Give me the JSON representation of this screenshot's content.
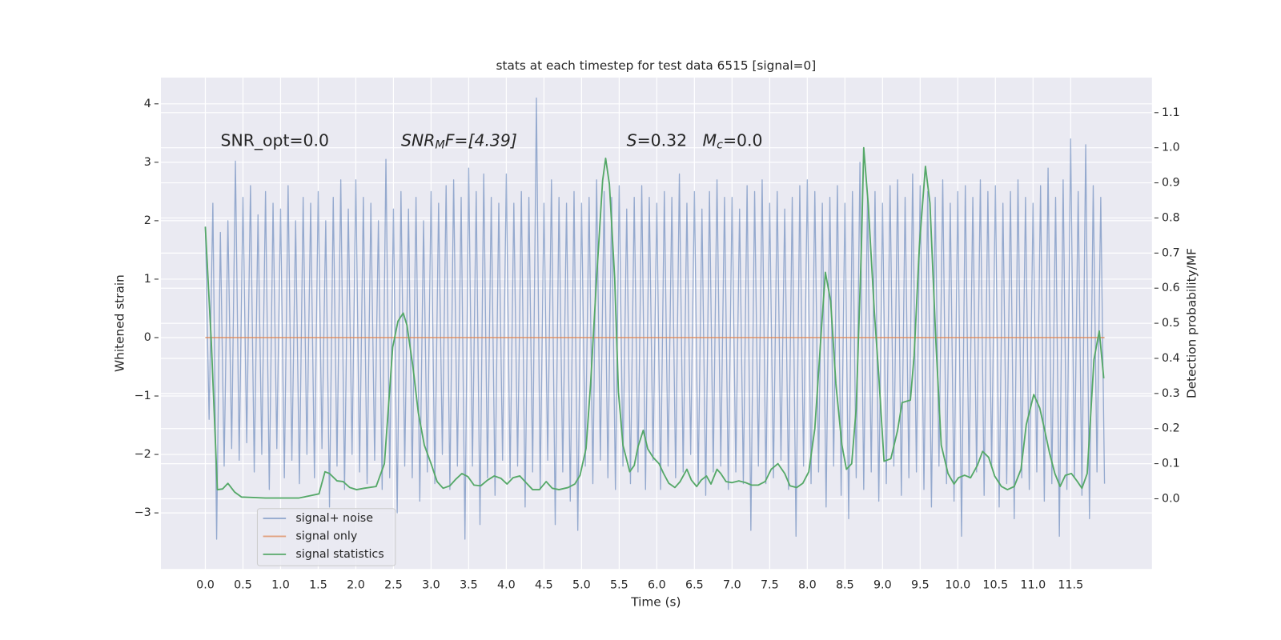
{
  "chart_data": {
    "type": "line",
    "title": "stats at each timestep for test data 6515 [signal=0]",
    "xlabel": "Time (s)",
    "ylabel": "Whitened strain",
    "y2label": "Detection probability/MF",
    "annotations": [
      [
        "SNR_opt=0.0"
      ],
      [
        "SNR",
        "M",
        "F=[4.39]"
      ],
      [
        "S",
        "=0.32   ",
        "M",
        "c",
        "=0.0"
      ]
    ],
    "grid": true,
    "legend": "lower left",
    "xlim": [
      -0.59,
      12.58
    ],
    "ylim": [
      -3.96,
      4.45
    ],
    "y2lim": [
      -0.2,
      1.2
    ],
    "xticks": [
      {
        "value": 0,
        "label": "0.0"
      },
      {
        "value": 0.5,
        "label": "0.5"
      },
      {
        "value": 1,
        "label": "1.0"
      },
      {
        "value": 1.5,
        "label": "1.5"
      },
      {
        "value": 2,
        "label": "2.0"
      },
      {
        "value": 2.5,
        "label": "2.5"
      },
      {
        "value": 3,
        "label": "3.0"
      },
      {
        "value": 3.5,
        "label": "3.5"
      },
      {
        "value": 4,
        "label": "4.0"
      },
      {
        "value": 4.5,
        "label": "4.5"
      },
      {
        "value": 5,
        "label": "5.0"
      },
      {
        "value": 5.5,
        "label": "5.5"
      },
      {
        "value": 6,
        "label": "6.0"
      },
      {
        "value": 6.5,
        "label": "6.5"
      },
      {
        "value": 7,
        "label": "7.0"
      },
      {
        "value": 7.5,
        "label": "7.5"
      },
      {
        "value": 8,
        "label": "8.0"
      },
      {
        "value": 8.5,
        "label": "8.5"
      },
      {
        "value": 9,
        "label": "9.0"
      },
      {
        "value": 9.5,
        "label": "9.5"
      },
      {
        "value": 10,
        "label": "10.0"
      },
      {
        "value": 10.5,
        "label": "10.5"
      },
      {
        "value": 11,
        "label": "11.0"
      },
      {
        "value": 11.5,
        "label": "11.5"
      }
    ],
    "yticks": [
      {
        "value": -3,
        "label": "−3"
      },
      {
        "value": -2,
        "label": "−2"
      },
      {
        "value": -1,
        "label": "−1"
      },
      0,
      1,
      2,
      3,
      4
    ],
    "y2ticks": [
      {
        "value": 0,
        "label": "0.0"
      },
      {
        "value": 0.1,
        "label": "0.1"
      },
      {
        "value": 0.2,
        "label": "0.2"
      },
      {
        "value": 0.3,
        "label": "0.3"
      },
      {
        "value": 0.4,
        "label": "0.4"
      },
      {
        "value": 0.5,
        "label": "0.5"
      },
      {
        "value": 0.6,
        "label": "0.6"
      },
      {
        "value": 0.7,
        "label": "0.7"
      },
      {
        "value": 0.8,
        "label": "0.8"
      },
      {
        "value": 0.9,
        "label": "0.9"
      },
      {
        "value": 1.0,
        "label": "1.0"
      },
      {
        "value": 1.1,
        "label": "1.1"
      }
    ],
    "series": [
      {
        "name": "signal+ noise",
        "color": "#4c72b0",
        "x": [
          0,
          0.05,
          0.1,
          0.15,
          0.2,
          0.25,
          0.3,
          0.35,
          0.4,
          0.45,
          0.5,
          0.55,
          0.6,
          0.65,
          0.7,
          0.75,
          0.8,
          0.85,
          0.9,
          0.95,
          1,
          1.05,
          1.1,
          1.15,
          1.2,
          1.25,
          1.3,
          1.35,
          1.4,
          1.45,
          1.5,
          1.55,
          1.6,
          1.65,
          1.7,
          1.75,
          1.8,
          1.85,
          1.9,
          1.95,
          2,
          2.05,
          2.1,
          2.15,
          2.2,
          2.25,
          2.3,
          2.35,
          2.4,
          2.45,
          2.5,
          2.55,
          2.6,
          2.65,
          2.7,
          2.75,
          2.8,
          2.85,
          2.9,
          2.95,
          3,
          3.05,
          3.1,
          3.15,
          3.2,
          3.25,
          3.3,
          3.35,
          3.4,
          3.45,
          3.5,
          3.55,
          3.6,
          3.65,
          3.7,
          3.75,
          3.8,
          3.85,
          3.9,
          3.95,
          4,
          4.05,
          4.1,
          4.15,
          4.2,
          4.25,
          4.3,
          4.35,
          4.4,
          4.45,
          4.5,
          4.55,
          4.6,
          4.65,
          4.7,
          4.75,
          4.8,
          4.85,
          4.9,
          4.95,
          5,
          5.05,
          5.1,
          5.15,
          5.2,
          5.25,
          5.3,
          5.35,
          5.4,
          5.45,
          5.5,
          5.55,
          5.6,
          5.65,
          5.7,
          5.75,
          5.8,
          5.85,
          5.9,
          5.95,
          6,
          6.05,
          6.1,
          6.15,
          6.2,
          6.25,
          6.3,
          6.35,
          6.4,
          6.45,
          6.5,
          6.55,
          6.6,
          6.65,
          6.7,
          6.75,
          6.8,
          6.85,
          6.9,
          6.95,
          7,
          7.05,
          7.1,
          7.15,
          7.2,
          7.25,
          7.3,
          7.35,
          7.4,
          7.45,
          7.5,
          7.55,
          7.6,
          7.65,
          7.7,
          7.75,
          7.8,
          7.85,
          7.9,
          7.95,
          8,
          8.05,
          8.1,
          8.15,
          8.2,
          8.25,
          8.3,
          8.35,
          8.4,
          8.45,
          8.5,
          8.55,
          8.6,
          8.65,
          8.7,
          8.75,
          8.8,
          8.85,
          8.9,
          8.95,
          9,
          9.05,
          9.1,
          9.15,
          9.2,
          9.25,
          9.3,
          9.35,
          9.4,
          9.45,
          9.5,
          9.55,
          9.6,
          9.65,
          9.7,
          9.75,
          9.8,
          9.85,
          9.9,
          9.95,
          10,
          10.05,
          10.1,
          10.15,
          10.2,
          10.25,
          10.3,
          10.35,
          10.4,
          10.45,
          10.5,
          10.55,
          10.6,
          10.65,
          10.7,
          10.75,
          10.8,
          10.85,
          10.9,
          10.95,
          11,
          11.05,
          11.1,
          11.15,
          11.2,
          11.25,
          11.3,
          11.35,
          11.4,
          11.45,
          11.5,
          11.55,
          11.6,
          11.65,
          11.7,
          11.75,
          11.8,
          11.85,
          11.9,
          11.95
        ],
        "values": [
          1.9,
          -1.4,
          2.3,
          -3.45,
          1.8,
          -2.2,
          2.0,
          -1.9,
          3.02,
          -2.1,
          2.4,
          -1.8,
          2.6,
          -2.3,
          2.1,
          -2.0,
          2.5,
          -2.6,
          2.3,
          -1.9,
          2.2,
          -2.4,
          2.6,
          -2.1,
          2.0,
          -2.5,
          2.4,
          -2.0,
          2.3,
          -2.4,
          2.5,
          -1.9,
          2.0,
          -2.9,
          2.4,
          -2.2,
          2.7,
          -2.6,
          2.2,
          -2.0,
          2.7,
          -2.3,
          2.4,
          -2.5,
          2.3,
          -2.1,
          2.0,
          -2.6,
          3.05,
          -2.4,
          2.2,
          -3.0,
          2.5,
          -2.2,
          2.2,
          -2.4,
          2.4,
          -2.8,
          2.0,
          -2.3,
          2.5,
          -2.5,
          2.3,
          -2.0,
          2.6,
          -2.6,
          2.7,
          -2.2,
          2.4,
          -3.45,
          2.9,
          -2.2,
          2.5,
          -3.2,
          2.8,
          -2.4,
          2.4,
          -2.7,
          2.3,
          -2.1,
          2.8,
          -2.4,
          2.3,
          -2.2,
          2.5,
          -2.9,
          2.4,
          -2.3,
          4.1,
          -2.6,
          2.3,
          -2.1,
          2.7,
          -3.2,
          2.4,
          -2.3,
          2.3,
          -2.8,
          2.5,
          -3.3,
          2.3,
          -2.2,
          2.4,
          -2.5,
          2.7,
          -2.1,
          2.5,
          -2.4,
          2.4,
          -2.6,
          2.6,
          -2.2,
          2.2,
          -2.5,
          2.4,
          -2.3,
          2.6,
          -2.6,
          2.4,
          -2.1,
          2.3,
          -2.6,
          2.5,
          -2.2,
          2.4,
          -2.4,
          2.8,
          -2.3,
          2.3,
          -2.0,
          2.5,
          -2.5,
          2.2,
          -2.7,
          2.5,
          -2.3,
          2.7,
          -2.2,
          2.4,
          -2.6,
          2.4,
          -2.3,
          2.2,
          -2.5,
          2.6,
          -3.3,
          2.5,
          -2.2,
          2.7,
          -2.5,
          2.3,
          -2.4,
          2.5,
          -2.1,
          2.2,
          -2.6,
          2.4,
          -3.4,
          2.6,
          -2.2,
          2.7,
          -2.5,
          2.5,
          -2.3,
          2.3,
          -2.9,
          2.4,
          -2.2,
          2.6,
          -2.7,
          2.3,
          -3.1,
          2.5,
          -2.4,
          3.0,
          -2.6,
          2.4,
          -2.3,
          2.5,
          -2.8,
          2.3,
          -2.5,
          2.6,
          -2.2,
          2.7,
          -2.7,
          2.4,
          -2.4,
          2.8,
          -2.3,
          2.6,
          -2.6,
          2.5,
          -2.9,
          2.4,
          -2.2,
          2.7,
          -2.5,
          2.3,
          -2.8,
          2.5,
          -3.4,
          2.6,
          -2.4,
          2.4,
          -2.3,
          2.7,
          -2.7,
          2.5,
          -2.2,
          2.6,
          -2.9,
          2.3,
          -2.5,
          2.5,
          -3.1,
          2.7,
          -2.4,
          2.4,
          -2.6,
          2.3,
          -2.3,
          2.6,
          -2.8,
          2.9,
          -2.5,
          2.4,
          -3.4,
          2.7,
          -2.6,
          3.4,
          -2.4,
          2.5,
          -2.7,
          3.3,
          -3.1,
          2.6,
          -2.3,
          2.4,
          -2.5
        ]
      },
      {
        "name": "signal only",
        "color": "#dd8452",
        "x": [
          0,
          11.95
        ],
        "values": [
          0,
          0
        ]
      },
      {
        "name": "signal statistics",
        "color": "#55a868",
        "axis": "y2",
        "x": [
          0,
          0.08,
          0.16,
          0.23,
          0.3,
          0.39,
          0.48,
          0.8,
          1.24,
          1.4,
          1.51,
          1.59,
          1.65,
          1.75,
          1.83,
          1.92,
          2.01,
          2.11,
          2.27,
          2.38,
          2.49,
          2.56,
          2.63,
          2.68,
          2.76,
          2.83,
          2.91,
          3.0,
          3.08,
          3.16,
          3.25,
          3.33,
          3.41,
          3.49,
          3.57,
          3.66,
          3.75,
          3.84,
          3.93,
          4.01,
          4.09,
          4.18,
          4.27,
          4.35,
          4.44,
          4.53,
          4.61,
          4.7,
          4.82,
          4.91,
          4.98,
          5.06,
          5.12,
          5.2,
          5.28,
          5.32,
          5.37,
          5.44,
          5.49,
          5.55,
          5.64,
          5.7,
          5.75,
          5.82,
          5.88,
          5.95,
          6.03,
          6.09,
          6.16,
          6.24,
          6.31,
          6.4,
          6.46,
          6.53,
          6.59,
          6.66,
          6.72,
          6.8,
          6.85,
          6.92,
          7.0,
          7.09,
          7.18,
          7.26,
          7.35,
          7.44,
          7.52,
          7.61,
          7.7,
          7.77,
          7.86,
          7.94,
          8.02,
          8.1,
          8.19,
          8.24,
          8.31,
          8.38,
          8.46,
          8.52,
          8.59,
          8.65,
          8.72,
          8.75,
          8.81,
          8.89,
          8.95,
          9.02,
          9.11,
          9.2,
          9.26,
          9.37,
          9.42,
          9.49,
          9.57,
          9.63,
          9.71,
          9.78,
          9.87,
          9.95,
          10.01,
          10.09,
          10.17,
          10.26,
          10.33,
          10.41,
          10.49,
          10.58,
          10.66,
          10.75,
          10.84,
          10.91,
          11.01,
          11.09,
          11.15,
          11.22,
          11.29,
          11.36,
          11.43,
          11.51,
          11.59,
          11.65,
          11.72,
          11.81,
          11.88,
          11.94
        ],
        "values": [
          0.775,
          0.443,
          0.026,
          0.028,
          0.044,
          0.019,
          0.005,
          0.002,
          0.002,
          0.009,
          0.014,
          0.077,
          0.072,
          0.051,
          0.049,
          0.032,
          0.026,
          0.03,
          0.035,
          0.1,
          0.432,
          0.506,
          0.529,
          0.494,
          0.374,
          0.246,
          0.153,
          0.1,
          0.049,
          0.03,
          0.037,
          0.056,
          0.072,
          0.063,
          0.039,
          0.037,
          0.053,
          0.065,
          0.058,
          0.042,
          0.06,
          0.065,
          0.044,
          0.026,
          0.026,
          0.049,
          0.03,
          0.026,
          0.032,
          0.042,
          0.067,
          0.144,
          0.327,
          0.629,
          0.907,
          0.97,
          0.896,
          0.629,
          0.304,
          0.153,
          0.077,
          0.095,
          0.148,
          0.195,
          0.142,
          0.118,
          0.1,
          0.072,
          0.044,
          0.032,
          0.049,
          0.084,
          0.053,
          0.035,
          0.053,
          0.065,
          0.042,
          0.084,
          0.072,
          0.049,
          0.046,
          0.051,
          0.046,
          0.039,
          0.039,
          0.049,
          0.084,
          0.1,
          0.072,
          0.037,
          0.032,
          0.044,
          0.077,
          0.2,
          0.49,
          0.645,
          0.564,
          0.327,
          0.153,
          0.084,
          0.1,
          0.258,
          0.722,
          1.0,
          0.838,
          0.536,
          0.35,
          0.107,
          0.114,
          0.195,
          0.274,
          0.281,
          0.408,
          0.722,
          0.947,
          0.842,
          0.443,
          0.153,
          0.072,
          0.042,
          0.06,
          0.067,
          0.06,
          0.095,
          0.135,
          0.118,
          0.065,
          0.035,
          0.026,
          0.035,
          0.084,
          0.211,
          0.297,
          0.258,
          0.2,
          0.13,
          0.072,
          0.035,
          0.067,
          0.072,
          0.049,
          0.03,
          0.072,
          0.397,
          0.478,
          0.343
        ]
      }
    ]
  }
}
